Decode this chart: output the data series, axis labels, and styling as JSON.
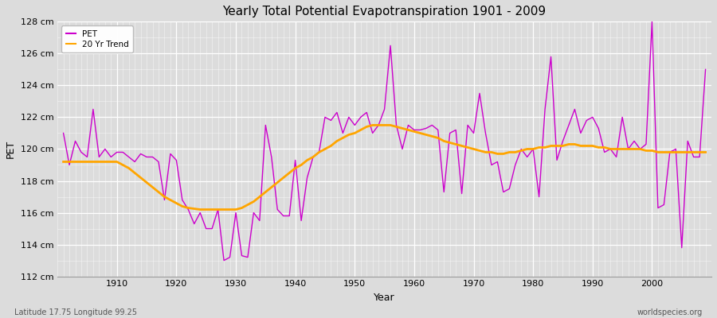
{
  "title": "Yearly Total Potential Evapotranspiration 1901 - 2009",
  "xlabel": "Year",
  "ylabel": "PET",
  "subtitle_left": "Latitude 17.75 Longitude 99.25",
  "subtitle_right": "worldspecies.org",
  "pet_color": "#CC00CC",
  "trend_color": "#FFA500",
  "background_color": "#DCDCDC",
  "plot_bg_color": "#DCDCDC",
  "grid_color": "#FFFFFF",
  "ylim": [
    112,
    128
  ],
  "xlim": [
    1900,
    2010
  ],
  "yticks": [
    112,
    114,
    116,
    118,
    120,
    122,
    124,
    126,
    128
  ],
  "ytick_labels": [
    "112 cm",
    "114 cm",
    "116 cm",
    "118 cm",
    "120 cm",
    "122 cm",
    "124 cm",
    "126 cm",
    "128 cm"
  ],
  "years": [
    1901,
    1902,
    1903,
    1904,
    1905,
    1906,
    1907,
    1908,
    1909,
    1910,
    1911,
    1912,
    1913,
    1914,
    1915,
    1916,
    1917,
    1918,
    1919,
    1920,
    1921,
    1922,
    1923,
    1924,
    1925,
    1926,
    1927,
    1928,
    1929,
    1930,
    1931,
    1932,
    1933,
    1934,
    1935,
    1936,
    1937,
    1938,
    1939,
    1940,
    1941,
    1942,
    1943,
    1944,
    1945,
    1946,
    1947,
    1948,
    1949,
    1950,
    1951,
    1952,
    1953,
    1954,
    1955,
    1956,
    1957,
    1958,
    1959,
    1960,
    1961,
    1962,
    1963,
    1964,
    1965,
    1966,
    1967,
    1968,
    1969,
    1970,
    1971,
    1972,
    1973,
    1974,
    1975,
    1976,
    1977,
    1978,
    1979,
    1980,
    1981,
    1982,
    1983,
    1984,
    1985,
    1986,
    1987,
    1988,
    1989,
    1990,
    1991,
    1992,
    1993,
    1994,
    1995,
    1996,
    1997,
    1998,
    1999,
    2000,
    2001,
    2002,
    2003,
    2004,
    2005,
    2006,
    2007,
    2008,
    2009
  ],
  "pet_values": [
    121.0,
    119.0,
    120.5,
    119.8,
    119.5,
    122.5,
    119.5,
    120.0,
    119.5,
    119.8,
    119.8,
    119.5,
    119.2,
    119.7,
    119.5,
    119.5,
    119.2,
    116.8,
    119.7,
    119.3,
    116.8,
    116.2,
    115.3,
    116.0,
    115.0,
    115.0,
    116.2,
    113.0,
    113.2,
    116.0,
    113.3,
    113.2,
    116.0,
    115.5,
    121.5,
    119.5,
    116.2,
    115.8,
    115.8,
    119.3,
    115.5,
    118.2,
    119.5,
    119.8,
    122.0,
    121.8,
    122.3,
    121.0,
    122.0,
    121.5,
    122.0,
    122.3,
    121.0,
    121.5,
    122.5,
    126.5,
    121.5,
    120.0,
    121.5,
    121.2,
    121.2,
    121.3,
    121.5,
    121.2,
    117.3,
    121.0,
    121.2,
    117.2,
    121.5,
    121.0,
    123.5,
    121.0,
    119.0,
    119.2,
    117.3,
    117.5,
    119.0,
    120.0,
    119.5,
    120.0,
    117.0,
    122.5,
    125.8,
    119.3,
    120.5,
    121.5,
    122.5,
    121.0,
    121.8,
    122.0,
    121.3,
    119.8,
    120.0,
    119.5,
    122.0,
    120.0,
    120.5,
    120.0,
    120.3,
    128.0,
    116.3,
    116.5,
    119.8,
    120.0,
    113.8,
    120.5,
    119.5,
    119.5,
    125.0
  ],
  "trend_values": [
    119.2,
    119.2,
    119.2,
    119.2,
    119.2,
    119.2,
    119.2,
    119.2,
    119.2,
    119.2,
    119.0,
    118.8,
    118.5,
    118.2,
    117.9,
    117.6,
    117.3,
    117.0,
    116.8,
    116.6,
    116.4,
    116.3,
    116.25,
    116.2,
    116.2,
    116.2,
    116.2,
    116.2,
    116.2,
    116.2,
    116.3,
    116.5,
    116.7,
    117.0,
    117.3,
    117.6,
    117.9,
    118.2,
    118.5,
    118.8,
    119.0,
    119.3,
    119.5,
    119.8,
    120.0,
    120.2,
    120.5,
    120.7,
    120.9,
    121.0,
    121.2,
    121.4,
    121.5,
    121.5,
    121.5,
    121.5,
    121.4,
    121.3,
    121.2,
    121.1,
    121.0,
    120.9,
    120.8,
    120.7,
    120.5,
    120.4,
    120.3,
    120.2,
    120.1,
    120.0,
    119.9,
    119.8,
    119.8,
    119.7,
    119.7,
    119.8,
    119.8,
    119.9,
    120.0,
    120.0,
    120.1,
    120.1,
    120.2,
    120.2,
    120.2,
    120.3,
    120.3,
    120.2,
    120.2,
    120.2,
    120.1,
    120.1,
    120.0,
    120.0,
    120.0,
    120.0,
    120.0,
    120.0,
    119.9,
    119.9,
    119.8,
    119.8,
    119.8,
    119.8,
    119.8,
    119.8,
    119.8,
    119.8,
    119.8
  ]
}
